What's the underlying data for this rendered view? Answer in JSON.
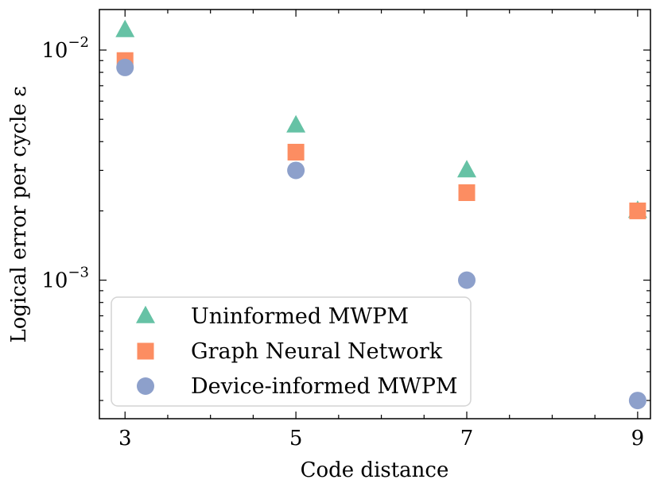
{
  "chart_data": {
    "type": "scatter",
    "xlabel": "Code distance",
    "ylabel": "Logical error per cycle ε",
    "yscale": "log",
    "xlim": [
      2.7,
      9.15
    ],
    "ylim": [
      0.00025,
      0.015
    ],
    "xticks": [
      3,
      5,
      7,
      9
    ],
    "xtick_labels": [
      "3",
      "5",
      "7",
      "9"
    ],
    "yticks": [
      0.001,
      0.01
    ],
    "ytick_labels": [
      {
        "base": "10",
        "exp": "−3"
      },
      {
        "base": "10",
        "exp": "−2"
      }
    ],
    "legend_position": "lower-left",
    "series": [
      {
        "name": "Uninformed MWPM",
        "marker": "triangle",
        "color": "#66c2a5",
        "x": [
          3,
          5,
          7,
          9
        ],
        "y": [
          0.0122,
          0.0047,
          0.003,
          0.002
        ]
      },
      {
        "name": "Graph Neural Network",
        "marker": "square",
        "color": "#fc8d62",
        "x": [
          3,
          5,
          7,
          9
        ],
        "y": [
          0.009,
          0.0036,
          0.0024,
          0.002
        ]
      },
      {
        "name": "Device-informed MWPM",
        "marker": "circle",
        "color": "#8da0cb",
        "x": [
          3,
          5,
          7,
          9
        ],
        "y": [
          0.0084,
          0.003,
          0.001,
          0.0003
        ]
      }
    ]
  }
}
